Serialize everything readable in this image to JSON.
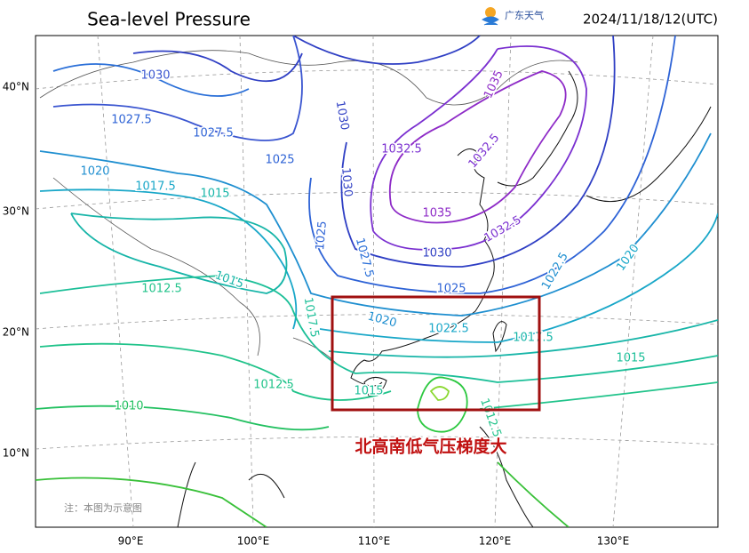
{
  "header": {
    "title": "Sea-level Pressure",
    "logo": "广东天气",
    "datetime": "2024/11/18/12(UTC)"
  },
  "map": {
    "lat_labels": [
      "40°N",
      "30°N",
      "20°N",
      "10°N"
    ],
    "lon_labels": [
      "90°E",
      "100°E",
      "110°E",
      "120°E",
      "130°E"
    ],
    "contour_labels": [
      "1030",
      "1027.5",
      "1027.5",
      "1025",
      "1030",
      "1020",
      "1017.5",
      "1015",
      "1030",
      "1025",
      "1027.5",
      "1032.5",
      "1035",
      "1035",
      "1032.5",
      "1030",
      "1025",
      "1022.5",
      "1020",
      "1012.5",
      "1015",
      "1017.5",
      "1020",
      "1022.5",
      "1017.5",
      "1015",
      "1012.5",
      "1015",
      "1010",
      "1012.5",
      "1032.5"
    ],
    "annotation": "北高南低气压梯度大",
    "note": "注：本图为示意图"
  }
}
